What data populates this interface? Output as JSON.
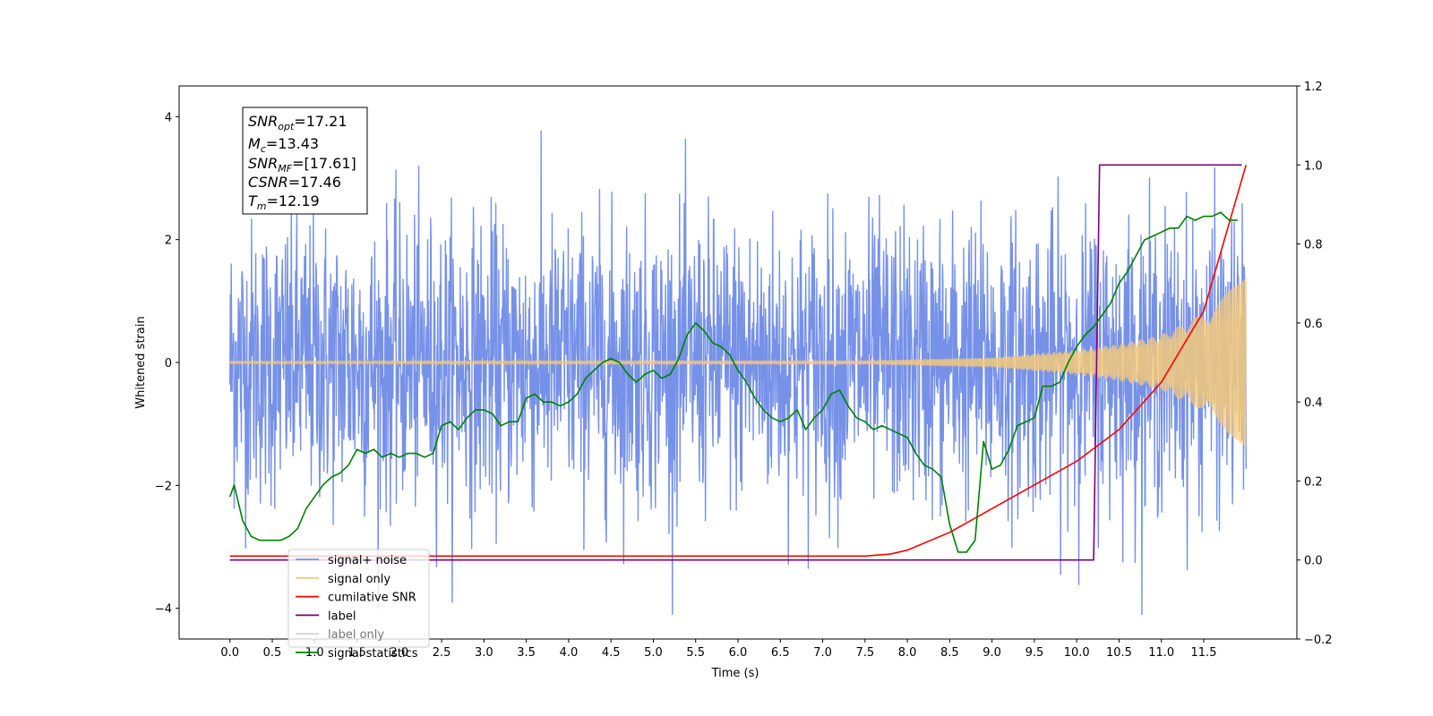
{
  "chart_data": {
    "type": "line",
    "xlabel": "Time (s)",
    "ylabel": "Whitened strain",
    "xlim": [
      -0.6,
      12.6
    ],
    "ylim": [
      -4.5,
      4.5
    ],
    "y2lim": [
      -0.2,
      1.2
    ],
    "x_ticks": [
      "0.0",
      "0.5",
      "1.0",
      "1.5",
      "2.0",
      "2.5",
      "3.0",
      "3.5",
      "4.0",
      "4.5",
      "5.0",
      "5.5",
      "6.0",
      "6.5",
      "7.0",
      "7.5",
      "8.0",
      "8.5",
      "9.0",
      "9.5",
      "10.0",
      "10.5",
      "11.0",
      "11.5"
    ],
    "y_ticks": [
      4,
      2,
      0,
      -2,
      -4
    ],
    "y_tick_labels": [
      "4",
      "2",
      "0",
      "−2",
      "−4"
    ],
    "y2_ticks": [
      1.2,
      1.0,
      0.8,
      0.6,
      0.4,
      0.2,
      0.0,
      -0.2
    ],
    "y2_tick_labels": [
      "1.2",
      "1.0",
      "0.8",
      "0.6",
      "0.4",
      "0.2",
      "0.0",
      "−0.2"
    ],
    "grid": false,
    "legend_position": "bottom-left",
    "info_box": {
      "snr_opt": {
        "name": "SNR",
        "sub": "opt",
        "value": "=17.21"
      },
      "mc": {
        "name": "M",
        "sub": "c",
        "value": "=13.43"
      },
      "snr_mf": {
        "name": "SNR",
        "sub": "MF",
        "value": "=[17.61]"
      },
      "csnr": {
        "name": "CSNR",
        "value": "=17.46"
      },
      "tm": {
        "name": "T",
        "sub": "m",
        "value": "=12.19"
      }
    },
    "series": [
      {
        "name": "signal+ noise",
        "color": "#7691e8",
        "axis": "left",
        "description_values": {
          "x_range": [
            0.0,
            12.0
          ],
          "approx_min": -4.1,
          "approx_max": 4.1
        }
      },
      {
        "name": "signal only",
        "color": "#f5c97a",
        "axis": "left",
        "envelope": {
          "x": [
            0.0,
            7.5,
            9.0,
            10.0,
            10.5,
            11.0,
            11.5,
            12.0
          ],
          "amp": [
            0.02,
            0.03,
            0.08,
            0.2,
            0.3,
            0.45,
            0.8,
            1.4
          ]
        }
      },
      {
        "name": "cumilative SNR",
        "color": "#ff0000",
        "axis": "right",
        "x": [
          0.0,
          7.5,
          7.8,
          8.0,
          8.5,
          9.0,
          9.5,
          10.0,
          10.5,
          11.0,
          11.5,
          12.0
        ],
        "y": [
          0.01,
          0.01,
          0.015,
          0.025,
          0.07,
          0.13,
          0.19,
          0.25,
          0.33,
          0.45,
          0.63,
          1.0
        ]
      },
      {
        "name": "label",
        "color": "#800080",
        "axis": "right",
        "x": [
          0.0,
          10.2,
          10.27,
          11.95
        ],
        "y": [
          0.0,
          0.0,
          1.0,
          1.0
        ]
      },
      {
        "name": "label only",
        "color": "#bbbbbb",
        "axis": "right",
        "hidden": true,
        "x": [],
        "y": []
      },
      {
        "name": "signal statistics",
        "color": "#008000",
        "axis": "right",
        "x": [
          0.0,
          0.05,
          0.15,
          0.25,
          0.35,
          0.5,
          0.6,
          0.7,
          0.8,
          0.9,
          1.0,
          1.1,
          1.2,
          1.3,
          1.4,
          1.5,
          1.6,
          1.7,
          1.8,
          1.9,
          2.0,
          2.1,
          2.2,
          2.3,
          2.4,
          2.5,
          2.6,
          2.7,
          2.8,
          2.9,
          3.0,
          3.1,
          3.2,
          3.3,
          3.4,
          3.5,
          3.6,
          3.7,
          3.8,
          3.9,
          4.0,
          4.1,
          4.2,
          4.3,
          4.4,
          4.5,
          4.6,
          4.7,
          4.8,
          4.9,
          5.0,
          5.1,
          5.2,
          5.3,
          5.4,
          5.5,
          5.6,
          5.7,
          5.8,
          5.9,
          6.0,
          6.1,
          6.2,
          6.3,
          6.4,
          6.5,
          6.6,
          6.7,
          6.8,
          6.9,
          7.0,
          7.1,
          7.2,
          7.3,
          7.4,
          7.5,
          7.6,
          7.7,
          7.8,
          7.9,
          8.0,
          8.1,
          8.2,
          8.3,
          8.4,
          8.5,
          8.6,
          8.7,
          8.8,
          8.9,
          9.0,
          9.1,
          9.2,
          9.3,
          9.4,
          9.5,
          9.6,
          9.7,
          9.8,
          9.9,
          10.0,
          10.1,
          10.2,
          10.3,
          10.4,
          10.5,
          10.6,
          10.7,
          10.8,
          10.9,
          11.0,
          11.1,
          11.2,
          11.3,
          11.4,
          11.5,
          11.6,
          11.7,
          11.8,
          11.9
        ],
        "y": [
          0.16,
          0.19,
          0.1,
          0.06,
          0.05,
          0.05,
          0.05,
          0.06,
          0.08,
          0.13,
          0.16,
          0.19,
          0.21,
          0.22,
          0.24,
          0.28,
          0.27,
          0.28,
          0.26,
          0.27,
          0.26,
          0.27,
          0.27,
          0.26,
          0.27,
          0.34,
          0.35,
          0.33,
          0.36,
          0.38,
          0.38,
          0.37,
          0.34,
          0.35,
          0.35,
          0.41,
          0.42,
          0.4,
          0.4,
          0.39,
          0.4,
          0.42,
          0.46,
          0.48,
          0.5,
          0.51,
          0.5,
          0.47,
          0.45,
          0.47,
          0.48,
          0.46,
          0.47,
          0.51,
          0.57,
          0.6,
          0.58,
          0.55,
          0.54,
          0.52,
          0.48,
          0.45,
          0.41,
          0.38,
          0.36,
          0.35,
          0.36,
          0.38,
          0.33,
          0.36,
          0.38,
          0.42,
          0.43,
          0.39,
          0.36,
          0.35,
          0.33,
          0.34,
          0.33,
          0.32,
          0.31,
          0.27,
          0.24,
          0.23,
          0.21,
          0.09,
          0.02,
          0.02,
          0.05,
          0.3,
          0.23,
          0.24,
          0.28,
          0.34,
          0.35,
          0.36,
          0.44,
          0.44,
          0.45,
          0.5,
          0.54,
          0.57,
          0.59,
          0.62,
          0.65,
          0.7,
          0.73,
          0.77,
          0.81,
          0.82,
          0.83,
          0.84,
          0.84,
          0.87,
          0.86,
          0.87,
          0.87,
          0.88,
          0.86,
          0.86
        ]
      }
    ]
  }
}
